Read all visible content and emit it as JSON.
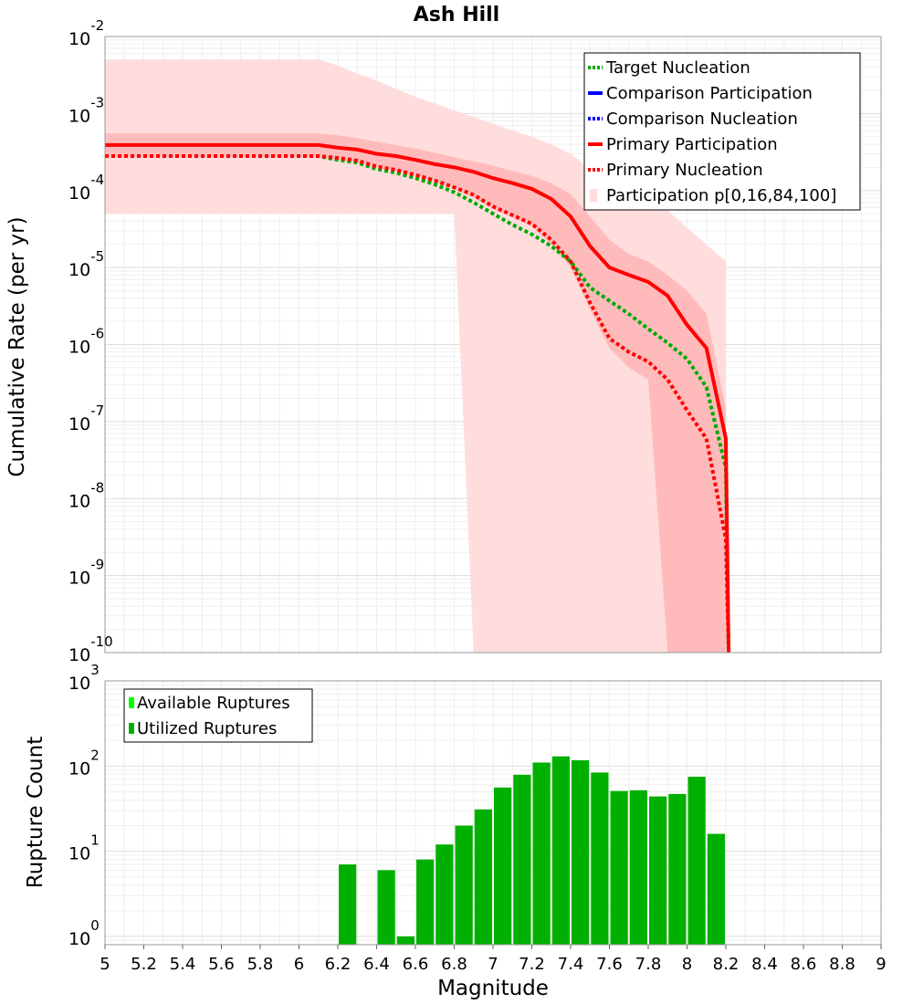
{
  "chart_data": {
    "title": "Ash Hill",
    "xlabel": "Magnitude",
    "xlim": [
      5,
      9
    ],
    "x_ticks": [
      "5",
      "5.2",
      "5.4",
      "5.6",
      "5.8",
      "6",
      "6.2",
      "6.4",
      "6.6",
      "6.8",
      "7",
      "7.2",
      "7.4",
      "7.6",
      "7.8",
      "8",
      "8.2",
      "8.4",
      "8.6",
      "8.8",
      "9"
    ],
    "top": {
      "type": "line",
      "ylabel": "Cumulative Rate (per yr)",
      "ylim": [
        1e-10,
        0.01
      ],
      "y_ticks": [
        {
          "base": "10",
          "exp": "-2"
        },
        {
          "base": "10",
          "exp": "-3"
        },
        {
          "base": "10",
          "exp": "-4"
        },
        {
          "base": "10",
          "exp": "-5"
        },
        {
          "base": "10",
          "exp": "-6"
        },
        {
          "base": "10",
          "exp": "-7"
        },
        {
          "base": "10",
          "exp": "-8"
        },
        {
          "base": "10",
          "exp": "-9"
        },
        {
          "base": "10",
          "exp": "-10"
        }
      ],
      "legend": [
        {
          "label": "Target Nucleation",
          "color": "#00aa00",
          "style": "dotted"
        },
        {
          "label": "Comparison Participation",
          "color": "#0000ff",
          "style": "solid"
        },
        {
          "label": "Comparison Nucleation",
          "color": "#0000ff",
          "style": "dotted"
        },
        {
          "label": "Primary Participation",
          "color": "#ff0000",
          "style": "solid"
        },
        {
          "label": "Primary Nucleation",
          "color": "#ff0000",
          "style": "dotted"
        },
        {
          "label": "Participation p[0,16,84,100]",
          "color": "#ffdddd",
          "style": "fill"
        }
      ],
      "x": [
        5.0,
        5.1,
        5.2,
        5.3,
        5.4,
        5.5,
        5.6,
        5.7,
        5.8,
        5.9,
        6.0,
        6.1,
        6.2,
        6.3,
        6.4,
        6.5,
        6.6,
        6.7,
        6.8,
        6.9,
        7.0,
        7.1,
        7.2,
        7.3,
        7.4,
        7.5,
        7.6,
        7.7,
        7.8,
        7.9,
        8.0,
        8.1,
        8.2
      ],
      "series": [
        {
          "name": "Primary Participation",
          "color": "#ff0000",
          "style": "solid",
          "values": [
            0.00039,
            0.00039,
            0.00039,
            0.00039,
            0.00039,
            0.00039,
            0.00039,
            0.00039,
            0.00039,
            0.00039,
            0.00039,
            0.00039,
            0.00036,
            0.00034,
            0.0003,
            0.00028,
            0.00025,
            0.00022,
            0.0002,
            0.000175,
            0.000145,
            0.000125,
            0.000105,
            7.8e-05,
            4.6e-05,
            1.9e-05,
            1e-05,
            8e-06,
            6.5e-06,
            4.3e-06,
            1.8e-06,
            9e-07,
            6e-08
          ]
        },
        {
          "name": "Primary Nucleation",
          "color": "#ff0000",
          "style": "dotted",
          "values": [
            0.00028,
            0.00028,
            0.00028,
            0.00028,
            0.00028,
            0.00028,
            0.00028,
            0.00028,
            0.00028,
            0.00028,
            0.00028,
            0.00028,
            0.000265,
            0.000245,
            0.000205,
            0.000185,
            0.00016,
            0.000135,
            0.00011,
            8.8e-05,
            6.2e-05,
            4.8e-05,
            3.7e-05,
            2.3e-05,
            1.2e-05,
            3.5e-06,
            1.2e-06,
            8e-07,
            6e-07,
            3.5e-07,
            1.4e-07,
            6e-08,
            3e-09
          ]
        },
        {
          "name": "Target Nucleation",
          "color": "#00aa00",
          "style": "dotted",
          "values": [
            0.00028,
            0.00028,
            0.00028,
            0.00028,
            0.00028,
            0.00028,
            0.00028,
            0.00028,
            0.00028,
            0.00028,
            0.00028,
            0.00028,
            0.00025,
            0.00023,
            0.00019,
            0.00017,
            0.000145,
            0.00012,
            9.5e-05,
            7e-05,
            5e-05,
            3.6e-05,
            2.7e-05,
            1.9e-05,
            1.2e-05,
            5.5e-06,
            3.7e-06,
            2.5e-06,
            1.6e-06,
            1.05e-06,
            6.5e-07,
            2.8e-07,
            2.5e-08
          ]
        }
      ],
      "bands": [
        {
          "name": "p0-p100",
          "color": "#ffdddd",
          "low": [
            5e-05,
            5e-05,
            5e-05,
            5e-05,
            5e-05,
            5e-05,
            5e-05,
            5e-05,
            5e-05,
            5e-05,
            5e-05,
            5e-05,
            5e-05,
            5e-05,
            5e-05,
            5e-05,
            5e-05,
            5e-05,
            5e-05,
            1e-10,
            1e-10,
            1e-10,
            1e-10,
            1e-10,
            1e-10,
            1e-10,
            1e-10,
            1e-10,
            1e-10,
            1e-10,
            1e-10,
            1e-10,
            1e-10
          ],
          "high": [
            0.005,
            0.005,
            0.005,
            0.005,
            0.005,
            0.005,
            0.005,
            0.005,
            0.005,
            0.005,
            0.005,
            0.005,
            0.0042,
            0.0033,
            0.0027,
            0.0021,
            0.00165,
            0.00135,
            0.0011,
            0.0009,
            0.00074,
            0.0006,
            0.0005,
            0.0004,
            0.0003,
            0.00019,
            0.00013,
            0.0001,
            8e-05,
            5.5e-05,
            3.3e-05,
            2e-05,
            1.2e-05
          ]
        },
        {
          "name": "p16-p84",
          "color": "#ffbbbb",
          "low": [
            0.00027,
            0.00027,
            0.00027,
            0.00027,
            0.00027,
            0.00027,
            0.00027,
            0.00027,
            0.00027,
            0.00027,
            0.00027,
            0.00027,
            0.00025,
            0.00023,
            0.0002,
            0.00018,
            0.000155,
            0.00013,
            0.000105,
            8e-05,
            5.8e-05,
            4.5e-05,
            3.4e-05,
            2e-05,
            1e-05,
            2.8e-06,
            9e-07,
            5e-07,
            3.5e-07,
            1e-10,
            1e-10,
            1e-10,
            1e-10
          ],
          "high": [
            0.00055,
            0.00055,
            0.00055,
            0.00055,
            0.00055,
            0.00055,
            0.00055,
            0.00055,
            0.00055,
            0.00055,
            0.00055,
            0.00055,
            0.00052,
            0.00048,
            0.00043,
            0.00039,
            0.00035,
            0.00031,
            0.00027,
            0.00024,
            0.00021,
            0.00018,
            0.000155,
            0.000125,
            9e-05,
            4.6e-05,
            2.3e-05,
            1.5e-05,
            1.2e-05,
            8e-06,
            5e-06,
            2.5e-06,
            1.5e-07
          ]
        }
      ]
    },
    "bottom": {
      "type": "bar",
      "ylabel": "Rupture Count",
      "ylim": [
        0.8,
        1000
      ],
      "y_ticks": [
        {
          "base": "10",
          "exp": "3"
        },
        {
          "base": "10",
          "exp": "2"
        },
        {
          "base": "10",
          "exp": "1"
        },
        {
          "base": "10",
          "exp": "0"
        }
      ],
      "legend": [
        {
          "label": "Available Ruptures",
          "color": "#00ff00"
        },
        {
          "label": "Utilized Ruptures",
          "color": "#00b000"
        }
      ],
      "bin_width": 0.1,
      "bin_centers": [
        6.25,
        6.45,
        6.55,
        6.65,
        6.75,
        6.85,
        6.95,
        7.05,
        7.15,
        7.25,
        7.35,
        7.45,
        7.55,
        7.65,
        7.75,
        7.85,
        7.95,
        8.05,
        8.15
      ],
      "values": [
        7,
        6,
        1,
        8,
        12,
        20,
        31,
        56,
        79,
        110,
        130,
        117,
        84,
        51,
        52,
        44,
        47,
        75,
        16
      ]
    }
  }
}
